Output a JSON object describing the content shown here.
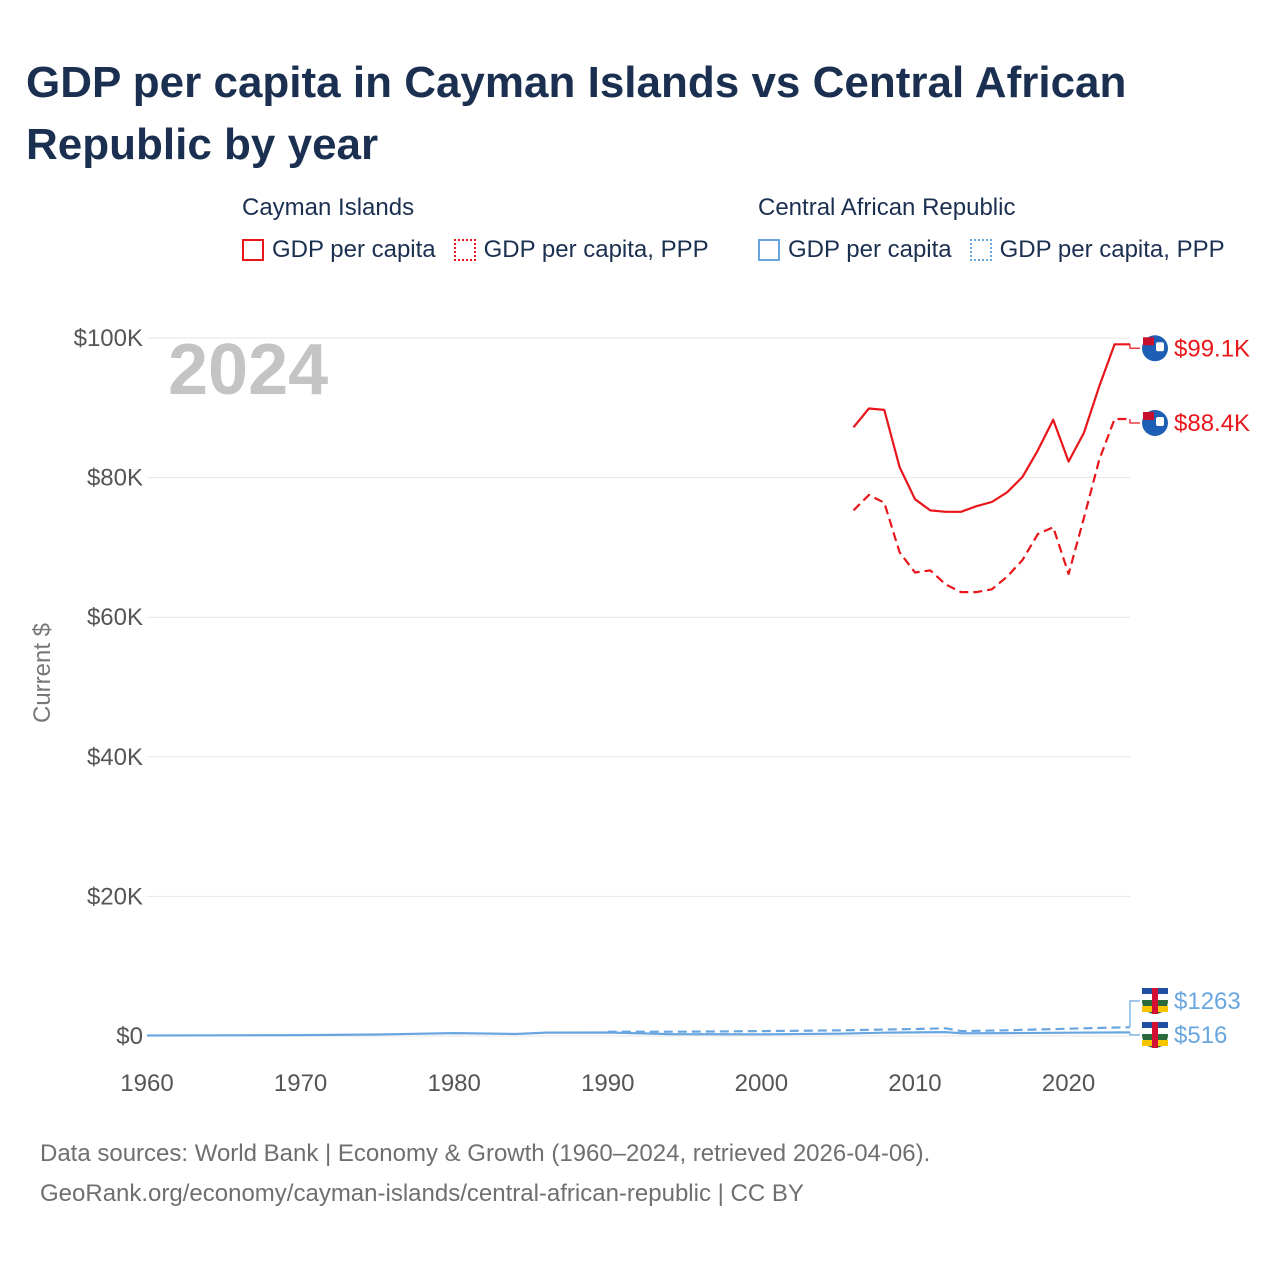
{
  "title": "GDP per capita in Cayman Islands vs Central African Republic by year",
  "legend": {
    "groups": [
      {
        "country": "Cayman Islands",
        "items": [
          "GDP per capita",
          "GDP per capita, PPP"
        ]
      },
      {
        "country": "Central African Republic",
        "items": [
          "GDP per capita",
          "GDP per capita, PPP"
        ]
      }
    ]
  },
  "footer": {
    "source": "Data sources: World Bank | Economy & Growth (1960–2024, retrieved 2026-04-06).",
    "url": "GeoRank.org/economy/cayman-islands/central-african-republic | CC BY"
  },
  "colors": {
    "cayman": "#e8161b",
    "car": "#69a6df",
    "grid": "#e6e6e6",
    "axis": "#555555",
    "year": "#c4c4c4"
  },
  "chart_data": {
    "type": "line",
    "title": "GDP per capita in Cayman Islands vs Central African Republic by year",
    "year_label": "2024",
    "ylabel": "Current $",
    "xlabel": "",
    "xlim": [
      1960,
      2024
    ],
    "ylim": [
      0,
      100000
    ],
    "x_ticks": [
      1960,
      1970,
      1980,
      1990,
      2000,
      2010,
      2020
    ],
    "y_ticks": [
      {
        "value": 0,
        "label": "$0"
      },
      {
        "value": 20000,
        "label": "$20K"
      },
      {
        "value": 40000,
        "label": "$40K"
      },
      {
        "value": 60000,
        "label": "$60K"
      },
      {
        "value": 80000,
        "label": "$80K"
      },
      {
        "value": 100000,
        "label": "$100K"
      }
    ],
    "series": [
      {
        "name": "Cayman Islands — GDP per capita",
        "color": "#e8161b",
        "dash": "solid",
        "end_label": "$99.1K",
        "x": [
          2006,
          2007,
          2008,
          2009,
          2010,
          2011,
          2012,
          2013,
          2014,
          2015,
          2016,
          2017,
          2018,
          2019,
          2020,
          2021,
          2022,
          2023,
          2024
        ],
        "y": [
          87200,
          89900,
          89700,
          81500,
          76900,
          75300,
          75100,
          75100,
          75900,
          76500,
          77900,
          80100,
          83900,
          88300,
          82300,
          86400,
          93100,
          99100,
          99100
        ]
      },
      {
        "name": "Cayman Islands — GDP per capita, PPP",
        "color": "#e8161b",
        "dash": "dashed",
        "end_label": "$88.4K",
        "x": [
          2006,
          2007,
          2008,
          2009,
          2010,
          2011,
          2012,
          2013,
          2014,
          2015,
          2016,
          2017,
          2018,
          2019,
          2020,
          2021,
          2022,
          2023,
          2024
        ],
        "y": [
          75300,
          77500,
          76400,
          69300,
          66400,
          66700,
          64700,
          63600,
          63600,
          64000,
          65800,
          68200,
          71900,
          72900,
          66200,
          74200,
          82600,
          88400,
          88400
        ]
      },
      {
        "name": "Central African Republic — GDP per capita",
        "color": "#69a6df",
        "dash": "solid",
        "end_label": "$516",
        "x": [
          1960,
          1965,
          1970,
          1975,
          1980,
          1984,
          1986,
          1990,
          1994,
          2000,
          2005,
          2008,
          2012,
          2013,
          2016,
          2020,
          2024
        ],
        "y": [
          70,
          95,
          130,
          220,
          420,
          280,
          480,
          500,
          270,
          240,
          330,
          470,
          560,
          380,
          410,
          470,
          516
        ]
      },
      {
        "name": "Central African Republic — GDP per capita, PPP",
        "color": "#69a6df",
        "dash": "dashed",
        "end_label": "$1263",
        "x": [
          1990,
          1995,
          2000,
          2005,
          2010,
          2012,
          2013,
          2016,
          2020,
          2024
        ],
        "y": [
          620,
          620,
          700,
          800,
          1000,
          1100,
          700,
          820,
          1050,
          1263
        ]
      }
    ]
  }
}
